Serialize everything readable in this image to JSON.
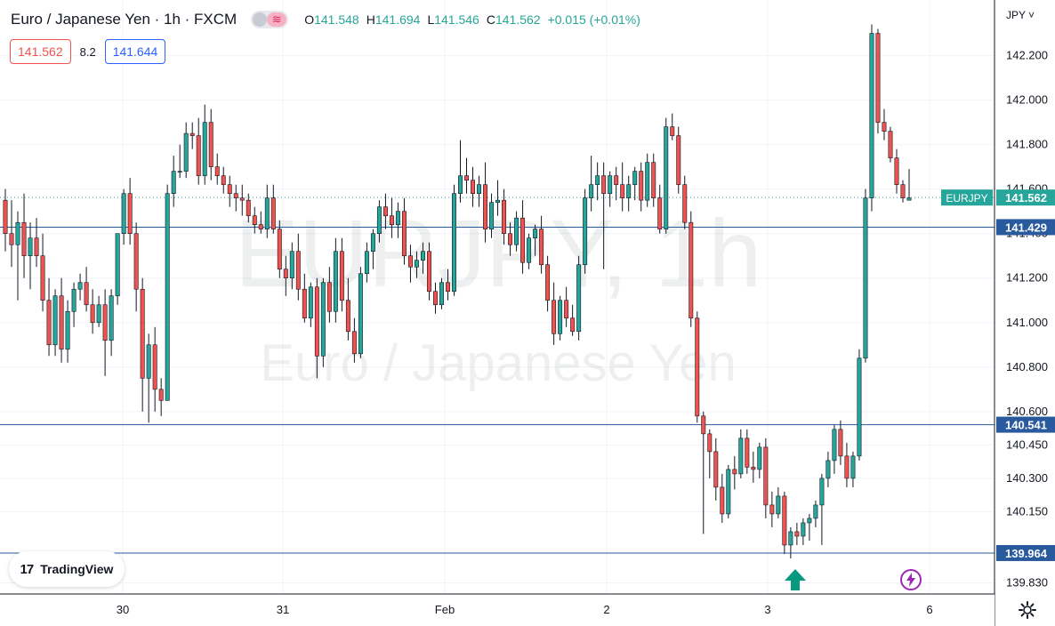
{
  "header": {
    "title": "Euro / Japanese Yen · 1h · FXCM",
    "ohlc": {
      "o_label": "O",
      "o": "141.548",
      "h_label": "H",
      "h": "141.694",
      "l_label": "L",
      "l": "141.546",
      "c_label": "C",
      "c": "141.562",
      "change": "+0.015 (+0.01%)"
    },
    "sell_price": "141.562",
    "spread": "8.2",
    "buy_price": "141.644"
  },
  "axis_currency": "JPY",
  "logo_text": "TradingView",
  "watermark": {
    "line1": "EURJPY, 1h",
    "line2": "Euro / Japanese Yen"
  },
  "colors": {
    "up": "#26a69a",
    "down": "#ef5350",
    "line": "#2a5a9e",
    "ticker": "#26a69a"
  },
  "icons": {
    "logo": "tradingview-logo-icon",
    "settings": "gear-icon",
    "alert": "lightning-icon",
    "signal": "up-arrow-icon"
  },
  "chart_data": {
    "type": "candlestick",
    "symbol": "EURJPY",
    "ylim": [
      139.78,
      142.45
    ],
    "yticks": [
      "139.830",
      "140.150",
      "140.300",
      "140.450",
      "140.600",
      "140.800",
      "141.000",
      "141.200",
      "141.400",
      "141.600",
      "141.800",
      "142.000",
      "142.200"
    ],
    "xticks": [
      "30",
      "31",
      "Feb",
      "2",
      "3",
      "6"
    ],
    "horizontal_lines": [
      "141.429",
      "140.541",
      "139.964"
    ],
    "last_price_label": "141.562",
    "ticker_label": "EURJPY",
    "candles": [
      [
        141.55,
        141.6,
        141.32,
        141.4
      ],
      [
        141.4,
        141.55,
        141.25,
        141.35
      ],
      [
        141.35,
        141.5,
        141.1,
        141.45
      ],
      [
        141.45,
        141.58,
        141.2,
        141.3
      ],
      [
        141.3,
        141.45,
        141.15,
        141.38
      ],
      [
        141.38,
        141.47,
        141.25,
        141.3
      ],
      [
        141.3,
        141.4,
        141.05,
        141.1
      ],
      [
        141.1,
        141.2,
        140.85,
        140.9
      ],
      [
        140.9,
        141.15,
        140.85,
        141.12
      ],
      [
        141.12,
        141.2,
        140.82,
        140.88
      ],
      [
        140.88,
        141.1,
        140.82,
        141.05
      ],
      [
        141.05,
        141.18,
        140.98,
        141.15
      ],
      [
        141.15,
        141.22,
        141.1,
        141.18
      ],
      [
        141.18,
        141.25,
        141.05,
        141.08
      ],
      [
        141.08,
        141.15,
        140.95,
        141.0
      ],
      [
        141.0,
        141.12,
        140.98,
        141.08
      ],
      [
        141.08,
        141.15,
        140.76,
        140.92
      ],
      [
        140.92,
        141.15,
        140.85,
        141.12
      ],
      [
        141.12,
        141.4,
        141.08,
        141.4
      ],
      [
        141.4,
        141.6,
        141.35,
        141.58
      ],
      [
        141.58,
        141.65,
        141.35,
        141.4
      ],
      [
        141.4,
        141.45,
        141.05,
        141.15
      ],
      [
        141.15,
        141.2,
        140.6,
        140.75
      ],
      [
        140.75,
        140.95,
        140.55,
        140.9
      ],
      [
        140.9,
        140.98,
        140.6,
        140.7
      ],
      [
        140.7,
        140.75,
        140.58,
        140.65
      ],
      [
        140.65,
        141.62,
        140.65,
        141.58
      ],
      [
        141.58,
        141.75,
        141.52,
        141.68
      ],
      [
        141.68,
        141.8,
        141.65,
        141.68
      ],
      [
        141.68,
        141.9,
        141.65,
        141.85
      ],
      [
        141.85,
        141.9,
        141.78,
        141.84
      ],
      [
        141.84,
        141.92,
        141.62,
        141.66
      ],
      [
        141.66,
        141.98,
        141.62,
        141.9
      ],
      [
        141.9,
        141.96,
        141.64,
        141.7
      ],
      [
        141.7,
        141.76,
        141.62,
        141.66
      ],
      [
        141.66,
        141.7,
        141.58,
        141.62
      ],
      [
        141.62,
        141.66,
        141.52,
        141.58
      ],
      [
        141.58,
        141.62,
        141.5,
        141.56
      ],
      [
        141.56,
        141.62,
        141.48,
        141.55
      ],
      [
        141.55,
        141.58,
        141.45,
        141.48
      ],
      [
        141.48,
        141.52,
        141.4,
        141.44
      ],
      [
        141.44,
        141.5,
        141.4,
        141.42
      ],
      [
        141.42,
        141.62,
        141.38,
        141.56
      ],
      [
        141.56,
        141.62,
        141.4,
        141.42
      ],
      [
        141.42,
        141.46,
        141.2,
        141.24
      ],
      [
        141.24,
        141.3,
        141.12,
        141.2
      ],
      [
        141.2,
        141.36,
        141.15,
        141.32
      ],
      [
        141.32,
        141.4,
        141.1,
        141.15
      ],
      [
        141.15,
        141.22,
        141.0,
        141.02
      ],
      [
        141.02,
        141.18,
        140.98,
        141.16
      ],
      [
        141.16,
        141.2,
        140.75,
        140.85
      ],
      [
        140.85,
        141.2,
        140.8,
        141.18
      ],
      [
        141.18,
        141.25,
        141.0,
        141.05
      ],
      [
        141.05,
        141.38,
        141.0,
        141.32
      ],
      [
        141.32,
        141.38,
        141.05,
        141.1
      ],
      [
        141.1,
        141.2,
        140.92,
        140.96
      ],
      [
        140.96,
        141.02,
        140.82,
        140.86
      ],
      [
        140.86,
        141.25,
        140.84,
        141.22
      ],
      [
        141.22,
        141.36,
        141.18,
        141.32
      ],
      [
        141.32,
        141.42,
        141.24,
        141.4
      ],
      [
        141.4,
        141.55,
        141.36,
        141.52
      ],
      [
        141.52,
        141.58,
        141.42,
        141.48
      ],
      [
        141.48,
        141.56,
        141.38,
        141.44
      ],
      [
        141.44,
        141.54,
        141.38,
        141.5
      ],
      [
        141.5,
        141.56,
        141.26,
        141.3
      ],
      [
        141.3,
        141.35,
        141.18,
        141.25
      ],
      [
        141.25,
        141.32,
        141.2,
        141.28
      ],
      [
        141.28,
        141.36,
        141.22,
        141.32
      ],
      [
        141.32,
        141.36,
        141.1,
        141.14
      ],
      [
        141.14,
        141.18,
        141.04,
        141.08
      ],
      [
        141.08,
        141.2,
        141.06,
        141.18
      ],
      [
        141.18,
        141.24,
        141.1,
        141.14
      ],
      [
        141.14,
        141.62,
        141.12,
        141.58
      ],
      [
        141.58,
        141.82,
        141.54,
        141.66
      ],
      [
        141.66,
        141.74,
        141.58,
        141.64
      ],
      [
        141.64,
        141.7,
        141.52,
        141.58
      ],
      [
        141.58,
        141.66,
        141.52,
        141.62
      ],
      [
        141.62,
        141.72,
        141.36,
        141.42
      ],
      [
        141.42,
        141.58,
        141.38,
        141.54
      ],
      [
        141.54,
        141.64,
        141.48,
        141.55
      ],
      [
        141.55,
        141.6,
        141.35,
        141.4
      ],
      [
        141.4,
        141.45,
        141.3,
        141.35
      ],
      [
        141.35,
        141.5,
        141.32,
        141.47
      ],
      [
        141.47,
        141.55,
        141.22,
        141.27
      ],
      [
        141.27,
        141.4,
        141.24,
        141.38
      ],
      [
        141.38,
        141.44,
        141.3,
        141.42
      ],
      [
        141.42,
        141.48,
        141.22,
        141.26
      ],
      [
        141.26,
        141.3,
        141.05,
        141.1
      ],
      [
        141.1,
        141.18,
        140.9,
        140.95
      ],
      [
        140.95,
        141.12,
        140.92,
        141.1
      ],
      [
        141.1,
        141.16,
        140.98,
        141.02
      ],
      [
        141.02,
        141.08,
        140.94,
        140.96
      ],
      [
        140.96,
        141.3,
        140.92,
        141.26
      ],
      [
        141.26,
        141.6,
        141.22,
        141.56
      ],
      [
        141.56,
        141.75,
        141.5,
        141.62
      ],
      [
        141.62,
        141.72,
        141.55,
        141.66
      ],
      [
        141.66,
        141.72,
        141.24,
        141.58
      ],
      [
        141.58,
        141.68,
        141.52,
        141.66
      ],
      [
        141.66,
        141.7,
        141.55,
        141.62
      ],
      [
        141.62,
        141.72,
        141.5,
        141.56
      ],
      [
        141.56,
        141.66,
        141.5,
        141.62
      ],
      [
        141.62,
        141.7,
        141.55,
        141.68
      ],
      [
        141.68,
        141.72,
        141.5,
        141.55
      ],
      [
        141.55,
        141.76,
        141.52,
        141.72
      ],
      [
        141.72,
        141.76,
        141.52,
        141.56
      ],
      [
        141.56,
        141.62,
        141.4,
        141.42
      ],
      [
        141.42,
        141.92,
        141.4,
        141.88
      ],
      [
        141.88,
        141.94,
        141.82,
        141.84
      ],
      [
        141.84,
        141.88,
        141.58,
        141.62
      ],
      [
        141.62,
        141.66,
        141.42,
        141.45
      ],
      [
        141.45,
        141.5,
        140.98,
        141.02
      ],
      [
        141.02,
        141.05,
        140.55,
        140.58
      ],
      [
        140.58,
        140.6,
        140.05,
        140.5
      ],
      [
        140.5,
        140.52,
        140.3,
        140.42
      ],
      [
        140.42,
        140.48,
        140.2,
        140.26
      ],
      [
        140.26,
        140.32,
        140.1,
        140.14
      ],
      [
        140.14,
        140.36,
        140.12,
        140.34
      ],
      [
        140.34,
        140.4,
        140.25,
        140.32
      ],
      [
        140.32,
        140.52,
        140.3,
        140.48
      ],
      [
        140.48,
        140.52,
        140.32,
        140.35
      ],
      [
        140.35,
        140.42,
        140.28,
        140.34
      ],
      [
        140.34,
        140.46,
        140.3,
        140.44
      ],
      [
        140.44,
        140.48,
        140.12,
        140.18
      ],
      [
        140.18,
        140.24,
        140.08,
        140.14
      ],
      [
        140.14,
        140.26,
        140.12,
        140.22
      ],
      [
        140.22,
        140.24,
        139.96,
        140.0
      ],
      [
        140.0,
        140.08,
        139.94,
        140.06
      ],
      [
        140.06,
        140.1,
        140.0,
        140.04
      ],
      [
        140.04,
        140.12,
        140.0,
        140.1
      ],
      [
        140.1,
        140.14,
        140.02,
        140.12
      ],
      [
        140.12,
        140.2,
        140.08,
        140.18
      ],
      [
        140.18,
        140.32,
        140.0,
        140.3
      ],
      [
        140.3,
        140.42,
        140.26,
        140.38
      ],
      [
        140.38,
        140.54,
        140.32,
        140.52
      ],
      [
        140.52,
        140.56,
        140.36,
        140.4
      ],
      [
        140.4,
        140.46,
        140.26,
        140.3
      ],
      [
        140.3,
        140.42,
        140.26,
        140.4
      ],
      [
        140.4,
        140.88,
        140.38,
        140.84
      ],
      [
        140.84,
        141.6,
        140.82,
        141.56
      ],
      [
        141.56,
        142.34,
        141.5,
        142.3
      ],
      [
        142.3,
        142.32,
        141.85,
        141.9
      ],
      [
        141.9,
        141.96,
        141.82,
        141.86
      ],
      [
        141.86,
        141.88,
        141.72,
        141.74
      ],
      [
        141.74,
        141.78,
        141.58,
        141.62
      ],
      [
        141.62,
        141.64,
        141.54,
        141.56
      ],
      [
        141.55,
        141.69,
        141.55,
        141.56
      ]
    ]
  }
}
